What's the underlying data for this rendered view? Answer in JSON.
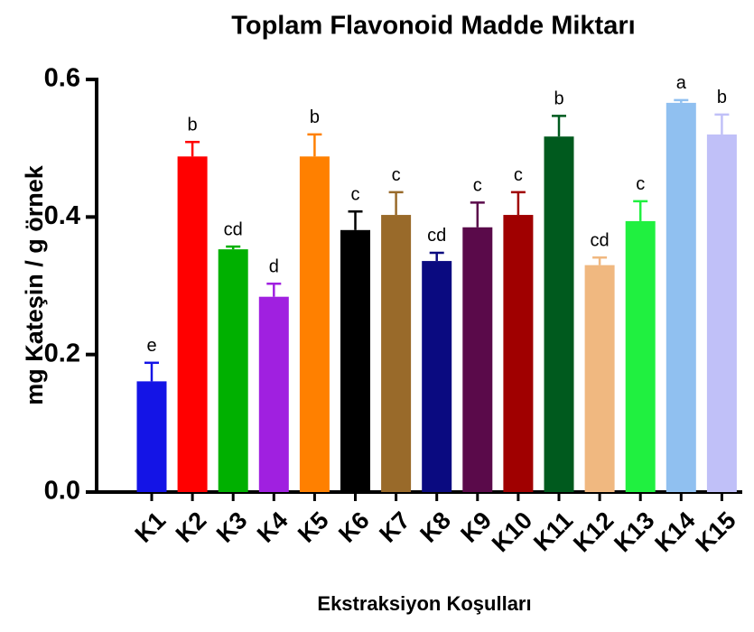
{
  "chart_data": {
    "type": "bar",
    "title": "Toplam Flavonoid Madde Miktarı",
    "xlabel": "Ekstraksiyon Koşulları",
    "ylabel": "mg Kateşin / g örnek",
    "categories": [
      "K1",
      "K2",
      "K3",
      "K4",
      "K5",
      "K6",
      "K7",
      "K8",
      "K9",
      "K10",
      "K11",
      "K12",
      "K13",
      "K14",
      "K15"
    ],
    "values": [
      0.161,
      0.488,
      0.353,
      0.284,
      0.488,
      0.381,
      0.403,
      0.336,
      0.385,
      0.403,
      0.517,
      0.33,
      0.394,
      0.566,
      0.52
    ],
    "errors": [
      0.027,
      0.021,
      0.004,
      0.019,
      0.032,
      0.027,
      0.033,
      0.012,
      0.036,
      0.033,
      0.03,
      0.011,
      0.029,
      0.004,
      0.029
    ],
    "annotations": [
      "e",
      "b",
      "cd",
      "d",
      "b",
      "c",
      "c",
      "cd",
      "c",
      "c",
      "b",
      "cd",
      "c",
      "a",
      "b"
    ],
    "colors": [
      "#1414e6",
      "#ff0000",
      "#00b000",
      "#a020e0",
      "#ff8000",
      "#000000",
      "#996a2a",
      "#0a0a80",
      "#5a0a4a",
      "#a00000",
      "#005a1e",
      "#f0b880",
      "#20f040",
      "#90c0f0",
      "#c0c0f8"
    ],
    "ylim": [
      0,
      0.6
    ],
    "yticks": [
      {
        "value": 0,
        "label": "0.0"
      },
      0.2,
      0.4,
      0.6
    ]
  }
}
